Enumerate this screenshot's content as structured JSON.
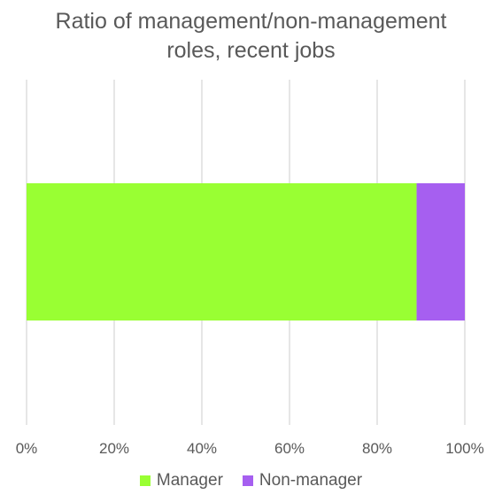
{
  "chart_data": {
    "type": "bar",
    "orientation": "horizontal",
    "stacked": "percent",
    "title": "Ratio of management/non-management roles, recent jobs",
    "xlabel": "",
    "ylabel": "",
    "xlim": [
      0,
      100
    ],
    "x_ticks": [
      "0%",
      "20%",
      "40%",
      "60%",
      "80%",
      "100%"
    ],
    "grid": "vertical",
    "legend_position": "bottom",
    "categories": [
      ""
    ],
    "series": [
      {
        "name": "Manager",
        "values": [
          89
        ],
        "color": "#99ff33"
      },
      {
        "name": "Non-manager",
        "values": [
          11
        ],
        "color": "#a65ff0"
      }
    ]
  }
}
